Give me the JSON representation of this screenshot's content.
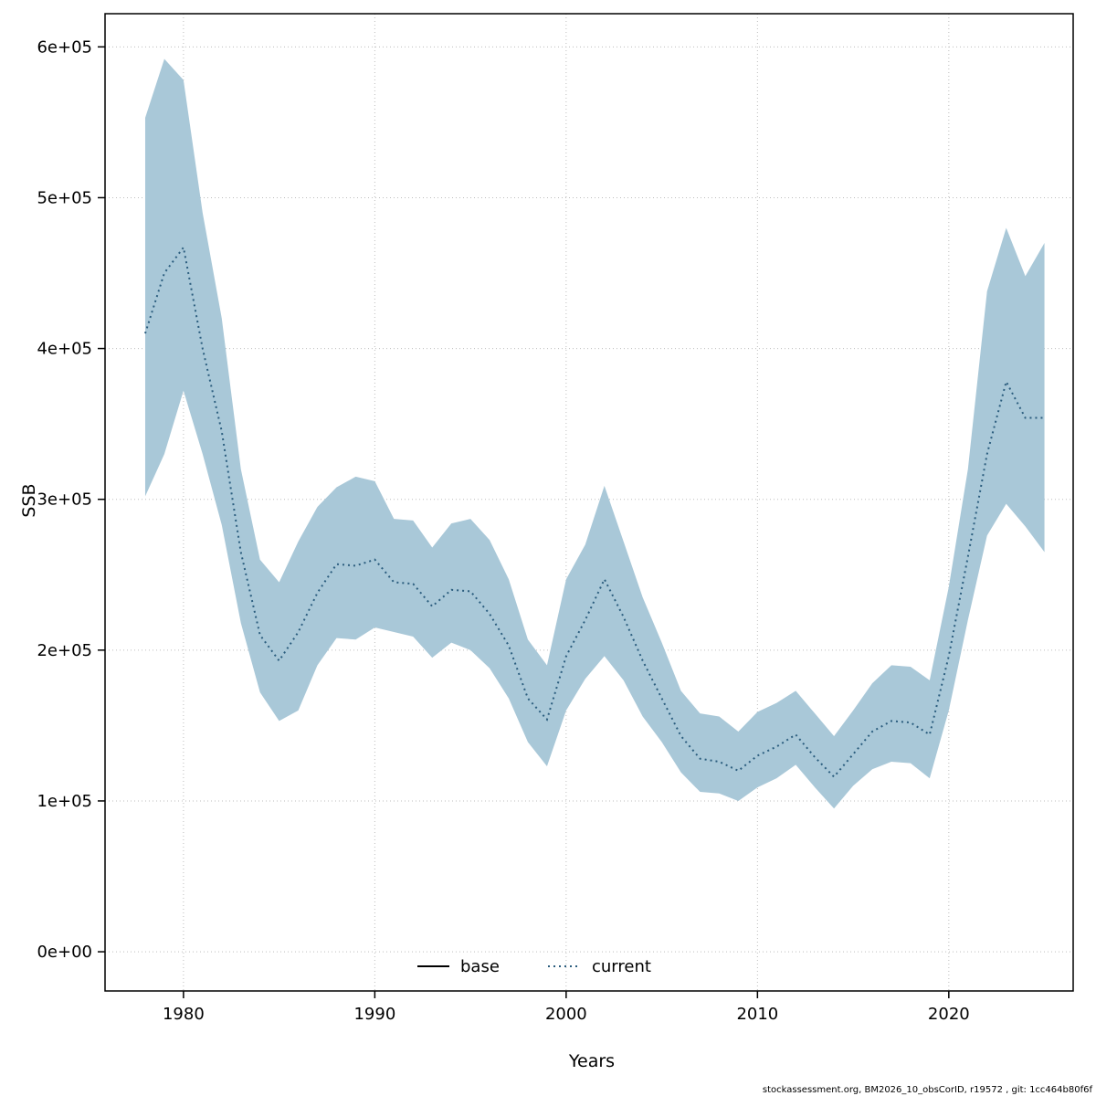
{
  "figure": {
    "footer": "stockassessment.org, BM2026_10_obsCorID, r19572 , git: 1cc464b80f6f"
  },
  "chart_data": {
    "type": "line",
    "title": "",
    "xlabel": "Years",
    "ylabel": "SSB",
    "xlim": [
      1975.9,
      2026.5
    ],
    "ylim": [
      -26000,
      622000
    ],
    "xticks": [
      1980,
      1990,
      2000,
      2010,
      2020
    ],
    "xtick_labels": [
      "1980",
      "1990",
      "2000",
      "2010",
      "2020"
    ],
    "yticks": [
      0,
      100000,
      200000,
      300000,
      400000,
      500000,
      600000
    ],
    "ytick_labels": [
      "0e+00",
      "1e+05",
      "2e+05",
      "3e+05",
      "4e+05",
      "5e+05",
      "6e+05"
    ],
    "grid": "dotted",
    "legend_position": "bottom-center-inside",
    "legend": [
      {
        "label": "base",
        "style": "solid",
        "color": "#000000"
      },
      {
        "label": "current",
        "style": "dotted",
        "color": "#2b5d7e"
      }
    ],
    "colors": {
      "band": "#a9c8d8",
      "line": "#2b5d7e",
      "grid": "#bdbdbd",
      "axis": "#000000"
    },
    "x": [
      1978,
      1979,
      1980,
      1981,
      1982,
      1983,
      1984,
      1985,
      1986,
      1987,
      1988,
      1989,
      1990,
      1991,
      1992,
      1993,
      1994,
      1995,
      1996,
      1997,
      1998,
      1999,
      2000,
      2001,
      2002,
      2003,
      2004,
      2005,
      2006,
      2007,
      2008,
      2009,
      2010,
      2011,
      2012,
      2013,
      2014,
      2015,
      2016,
      2017,
      2018,
      2019,
      2020,
      2021,
      2022,
      2023,
      2024,
      2025
    ],
    "series": [
      {
        "name": "current",
        "values": [
          410000,
          450000,
          467000,
          400000,
          345000,
          265000,
          210000,
          193000,
          212000,
          238000,
          257000,
          256000,
          260000,
          245000,
          244000,
          229000,
          240000,
          239000,
          224000,
          203000,
          168000,
          154000,
          196000,
          220000,
          247000,
          222000,
          193000,
          168000,
          143000,
          128000,
          126000,
          120000,
          130000,
          136000,
          144000,
          129000,
          116000,
          131000,
          146000,
          153000,
          152000,
          144000,
          196000,
          262000,
          330000,
          378000,
          354000,
          354000
        ]
      }
    ],
    "band": {
      "name": "current-confidence-interval",
      "upper": [
        553000,
        592000,
        578000,
        490000,
        420000,
        320000,
        260000,
        245000,
        272000,
        295000,
        308000,
        315000,
        312000,
        287000,
        286000,
        268000,
        284000,
        287000,
        273000,
        247000,
        207000,
        190000,
        247000,
        270000,
        309000,
        272000,
        235000,
        205000,
        173000,
        158000,
        156000,
        146000,
        159000,
        165000,
        173000,
        158000,
        143000,
        160000,
        178000,
        190000,
        189000,
        180000,
        242000,
        320000,
        438000,
        480000,
        448000,
        470000
      ],
      "lower": [
        302000,
        330000,
        372000,
        330000,
        283000,
        218000,
        172000,
        153000,
        160000,
        190000,
        208000,
        207000,
        215000,
        212000,
        209000,
        195000,
        205000,
        200000,
        188000,
        168000,
        139000,
        123000,
        160000,
        181000,
        196000,
        180000,
        156000,
        139000,
        119000,
        106000,
        105000,
        100000,
        109000,
        115000,
        124000,
        109000,
        95000,
        110000,
        121000,
        126000,
        125000,
        115000,
        160000,
        220000,
        276000,
        297000,
        282000,
        265000
      ]
    }
  }
}
